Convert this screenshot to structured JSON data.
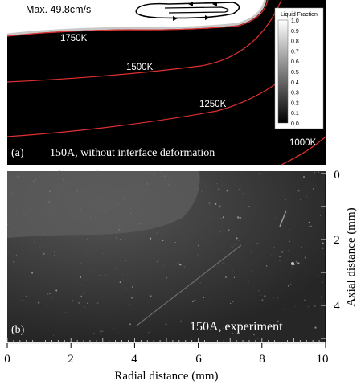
{
  "panel_a": {
    "label": "(a)",
    "caption": "150A, without interface deformation",
    "max_velocity_label": "Max. 49.8cm/s",
    "isotherms": [
      "1750K",
      "1500K",
      "1250K",
      "1000K"
    ],
    "colorbar": {
      "title": "Liquid Fraction",
      "ticks": [
        "1.0",
        "0.9",
        "0.8",
        "0.7",
        "0.6",
        "0.5",
        "0.4",
        "0.3",
        "0.2",
        "0.1",
        "0.0"
      ]
    }
  },
  "panel_b": {
    "label": "(b)",
    "caption": "150A, experiment",
    "x_axis_title": "Radial distance (mm)",
    "x_ticks": [
      "0",
      "2",
      "4",
      "6",
      "8",
      "10"
    ],
    "y_axis_title": "Axial distance (mm)",
    "y_ticks": [
      "0",
      "2",
      "4"
    ]
  },
  "colors": {
    "background": "#000000",
    "isotherm": "#e03030",
    "melt_pool": "#ffffff"
  }
}
